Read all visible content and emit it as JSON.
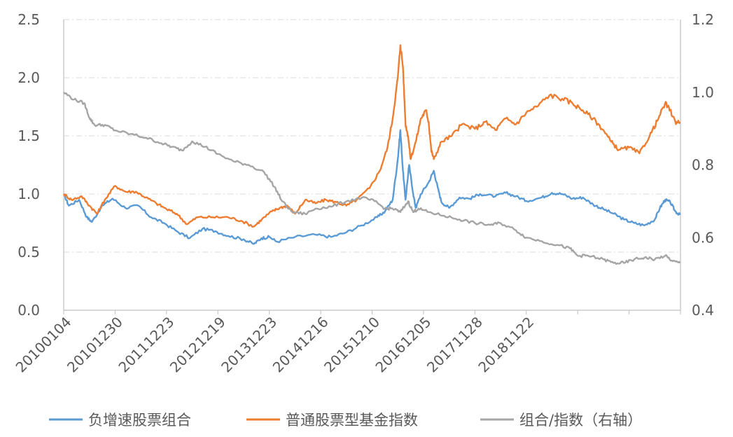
{
  "chart_data": {
    "type": "line",
    "x_tick_labels": [
      "20100104",
      "20101230",
      "20111223",
      "20121219",
      "20131223",
      "20141216",
      "20151210",
      "20161205",
      "20171128",
      "20181122"
    ],
    "y_left": {
      "range": [
        0.0,
        2.5
      ],
      "ticks": [
        "0.0",
        "0.5",
        "1.0",
        "1.5",
        "2.0",
        "2.5"
      ]
    },
    "y_right": {
      "range": [
        0.4,
        1.2
      ],
      "ticks": [
        "0.4",
        "0.6",
        "0.8",
        "1.0",
        "1.2"
      ]
    },
    "grid": "horizontal dashed",
    "legend_position": "bottom",
    "series": [
      {
        "name": "负增速股票组合",
        "axis": "left",
        "color": "#5B9BD5",
        "points": [
          [
            0.0,
            1.0
          ],
          [
            0.1,
            0.9
          ],
          [
            0.3,
            0.95
          ],
          [
            0.45,
            0.8
          ],
          [
            0.55,
            0.76
          ],
          [
            0.75,
            0.9
          ],
          [
            0.95,
            0.96
          ],
          [
            1.2,
            0.88
          ],
          [
            1.45,
            0.9
          ],
          [
            1.7,
            0.8
          ],
          [
            1.95,
            0.75
          ],
          [
            2.2,
            0.68
          ],
          [
            2.45,
            0.62
          ],
          [
            2.7,
            0.7
          ],
          [
            2.95,
            0.68
          ],
          [
            3.2,
            0.64
          ],
          [
            3.5,
            0.61
          ],
          [
            3.7,
            0.57
          ],
          [
            3.85,
            0.62
          ],
          [
            4.0,
            0.63
          ],
          [
            4.15,
            0.59
          ],
          [
            4.5,
            0.63
          ],
          [
            4.9,
            0.65
          ],
          [
            5.2,
            0.63
          ],
          [
            5.5,
            0.67
          ],
          [
            5.8,
            0.73
          ],
          [
            6.1,
            0.8
          ],
          [
            6.25,
            0.85
          ],
          [
            6.4,
            0.95
          ],
          [
            6.5,
            1.3
          ],
          [
            6.55,
            1.55
          ],
          [
            6.6,
            1.2
          ],
          [
            6.65,
            0.95
          ],
          [
            6.72,
            1.25
          ],
          [
            6.8,
            1.0
          ],
          [
            6.85,
            0.88
          ],
          [
            6.95,
            1.0
          ],
          [
            7.1,
            1.1
          ],
          [
            7.2,
            1.2
          ],
          [
            7.28,
            1.05
          ],
          [
            7.35,
            0.93
          ],
          [
            7.5,
            0.88
          ],
          [
            7.7,
            0.97
          ],
          [
            7.9,
            0.96
          ],
          [
            8.1,
            1.0
          ],
          [
            8.4,
            0.98
          ],
          [
            8.6,
            1.01
          ],
          [
            8.8,
            0.98
          ],
          [
            9.0,
            0.94
          ],
          [
            9.3,
            0.97
          ],
          [
            9.5,
            1.01
          ],
          [
            9.7,
            1.0
          ],
          [
            9.9,
            0.96
          ],
          [
            10.1,
            0.97
          ],
          [
            10.3,
            0.91
          ],
          [
            10.5,
            0.87
          ],
          [
            10.7,
            0.83
          ],
          [
            10.9,
            0.78
          ],
          [
            11.1,
            0.75
          ],
          [
            11.3,
            0.73
          ],
          [
            11.5,
            0.78
          ],
          [
            11.6,
            0.88
          ],
          [
            11.7,
            0.95
          ],
          [
            11.8,
            0.93
          ],
          [
            11.9,
            0.85
          ],
          [
            11.99,
            0.82
          ]
        ]
      },
      {
        "name": "普通股票型基金指数",
        "axis": "left",
        "color": "#ED7D31",
        "points": [
          [
            0.0,
            1.0
          ],
          [
            0.15,
            0.95
          ],
          [
            0.35,
            0.98
          ],
          [
            0.5,
            0.9
          ],
          [
            0.65,
            0.83
          ],
          [
            0.8,
            0.95
          ],
          [
            1.0,
            1.07
          ],
          [
            1.2,
            1.02
          ],
          [
            1.4,
            1.02
          ],
          [
            1.6,
            0.97
          ],
          [
            1.8,
            0.92
          ],
          [
            2.0,
            0.87
          ],
          [
            2.2,
            0.83
          ],
          [
            2.4,
            0.74
          ],
          [
            2.6,
            0.8
          ],
          [
            2.9,
            0.8
          ],
          [
            3.2,
            0.8
          ],
          [
            3.45,
            0.77
          ],
          [
            3.7,
            0.72
          ],
          [
            3.85,
            0.78
          ],
          [
            4.05,
            0.85
          ],
          [
            4.2,
            0.88
          ],
          [
            4.35,
            0.9
          ],
          [
            4.5,
            0.83
          ],
          [
            4.7,
            0.95
          ],
          [
            4.9,
            0.92
          ],
          [
            5.1,
            0.95
          ],
          [
            5.3,
            0.93
          ],
          [
            5.5,
            0.9
          ],
          [
            5.7,
            0.95
          ],
          [
            5.95,
            1.05
          ],
          [
            6.15,
            1.2
          ],
          [
            6.3,
            1.4
          ],
          [
            6.4,
            1.65
          ],
          [
            6.5,
            2.0
          ],
          [
            6.55,
            2.28
          ],
          [
            6.6,
            2.1
          ],
          [
            6.65,
            1.6
          ],
          [
            6.7,
            1.5
          ],
          [
            6.75,
            1.3
          ],
          [
            6.85,
            1.45
          ],
          [
            6.95,
            1.65
          ],
          [
            7.05,
            1.72
          ],
          [
            7.1,
            1.62
          ],
          [
            7.15,
            1.38
          ],
          [
            7.2,
            1.3
          ],
          [
            7.35,
            1.45
          ],
          [
            7.55,
            1.5
          ],
          [
            7.75,
            1.6
          ],
          [
            8.0,
            1.56
          ],
          [
            8.2,
            1.62
          ],
          [
            8.4,
            1.55
          ],
          [
            8.6,
            1.65
          ],
          [
            8.8,
            1.6
          ],
          [
            9.0,
            1.7
          ],
          [
            9.2,
            1.75
          ],
          [
            9.45,
            1.85
          ],
          [
            9.7,
            1.82
          ],
          [
            9.9,
            1.78
          ],
          [
            10.1,
            1.72
          ],
          [
            10.3,
            1.65
          ],
          [
            10.5,
            1.55
          ],
          [
            10.65,
            1.45
          ],
          [
            10.8,
            1.38
          ],
          [
            11.0,
            1.4
          ],
          [
            11.2,
            1.35
          ],
          [
            11.4,
            1.5
          ],
          [
            11.55,
            1.63
          ],
          [
            11.7,
            1.78
          ],
          [
            11.8,
            1.72
          ],
          [
            11.9,
            1.62
          ],
          [
            11.99,
            1.62
          ]
        ]
      },
      {
        "name": "组合/指数（右轴）",
        "axis": "right",
        "color": "#A5A5A5",
        "points": [
          [
            0.0,
            1.0
          ],
          [
            0.2,
            0.98
          ],
          [
            0.4,
            0.97
          ],
          [
            0.5,
            0.93
          ],
          [
            0.6,
            0.91
          ],
          [
            0.8,
            0.91
          ],
          [
            1.0,
            0.895
          ],
          [
            1.3,
            0.885
          ],
          [
            1.6,
            0.875
          ],
          [
            1.9,
            0.86
          ],
          [
            2.1,
            0.85
          ],
          [
            2.3,
            0.84
          ],
          [
            2.5,
            0.865
          ],
          [
            2.75,
            0.85
          ],
          [
            3.0,
            0.83
          ],
          [
            3.3,
            0.81
          ],
          [
            3.6,
            0.8
          ],
          [
            3.9,
            0.78
          ],
          [
            4.1,
            0.74
          ],
          [
            4.25,
            0.7
          ],
          [
            4.45,
            0.67
          ],
          [
            4.7,
            0.665
          ],
          [
            4.9,
            0.68
          ],
          [
            5.2,
            0.685
          ],
          [
            5.5,
            0.7
          ],
          [
            5.8,
            0.71
          ],
          [
            6.05,
            0.7
          ],
          [
            6.25,
            0.68
          ],
          [
            6.4,
            0.68
          ],
          [
            6.55,
            0.67
          ],
          [
            6.7,
            0.7
          ],
          [
            6.8,
            0.67
          ],
          [
            6.9,
            0.68
          ],
          [
            7.1,
            0.67
          ],
          [
            7.4,
            0.66
          ],
          [
            7.7,
            0.65
          ],
          [
            8.0,
            0.64
          ],
          [
            8.3,
            0.635
          ],
          [
            8.5,
            0.64
          ],
          [
            8.8,
            0.62
          ],
          [
            9.0,
            0.6
          ],
          [
            9.3,
            0.59
          ],
          [
            9.6,
            0.58
          ],
          [
            9.85,
            0.57
          ],
          [
            10.0,
            0.55
          ],
          [
            10.2,
            0.55
          ],
          [
            10.5,
            0.54
          ],
          [
            10.7,
            0.53
          ],
          [
            10.9,
            0.53
          ],
          [
            11.1,
            0.54
          ],
          [
            11.3,
            0.545
          ],
          [
            11.5,
            0.54
          ],
          [
            11.7,
            0.55
          ],
          [
            11.85,
            0.535
          ],
          [
            11.99,
            0.53
          ]
        ]
      }
    ]
  }
}
